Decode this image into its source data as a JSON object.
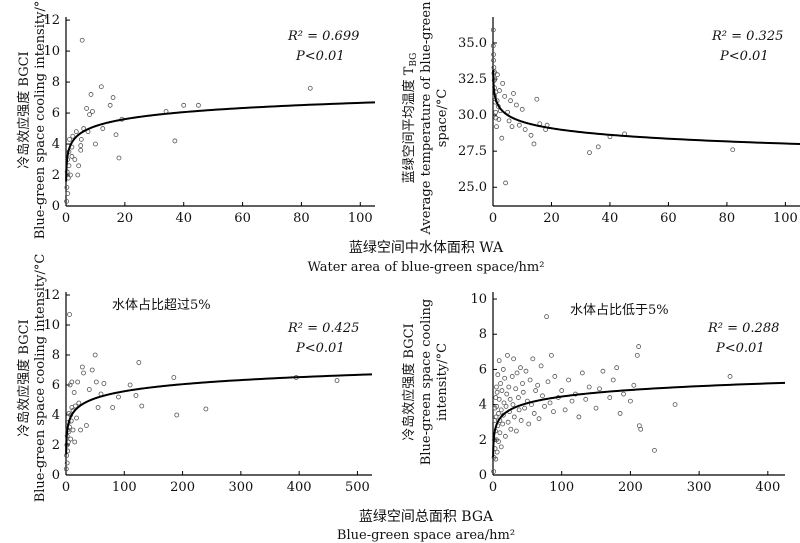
{
  "xlabels": {
    "top": {
      "zh": "蓝绿空间中水体面积 WA",
      "en": "Water area of blue-green space/hm²"
    },
    "bottom": {
      "zh": "蓝绿空间总面积 BGA",
      "en": "Blue-green space area/hm²"
    }
  },
  "chart_data": [
    {
      "type": "scatter",
      "ylabel_zh": "冷岛效应强度 BGCI",
      "ylabel_en": "Blue-green space cooling intensity/°C",
      "annotation": "",
      "r2_label": "R² = 0.699",
      "p_label": "P<0.01",
      "xlim": [
        0,
        105
      ],
      "ylim": [
        0,
        12.2
      ],
      "xticks": [
        0,
        20,
        40,
        60,
        80,
        100
      ],
      "yticks": [
        0,
        2,
        4,
        6,
        8,
        10,
        12
      ],
      "fit": {
        "form": "a + b*ln(x)",
        "a": 3.65,
        "b": 0.653
      },
      "points": [
        [
          0.2,
          0.3
        ],
        [
          0.3,
          1.2
        ],
        [
          0.4,
          2.2
        ],
        [
          0.5,
          3.0
        ],
        [
          0.6,
          0.8
        ],
        [
          0.8,
          1.8
        ],
        [
          1.0,
          2.6
        ],
        [
          1.0,
          3.5
        ],
        [
          1.2,
          4.3
        ],
        [
          1.5,
          2.0
        ],
        [
          2.0,
          3.2
        ],
        [
          2.0,
          3.8
        ],
        [
          2.3,
          4.5
        ],
        [
          3.0,
          3.0
        ],
        [
          3.5,
          4.8
        ],
        [
          4.0,
          2.0
        ],
        [
          4.3,
          2.6
        ],
        [
          5.0,
          3.9
        ],
        [
          5.0,
          3.6
        ],
        [
          5.2,
          4.3
        ],
        [
          5.5,
          10.7
        ],
        [
          6.0,
          5.0
        ],
        [
          7.0,
          6.3
        ],
        [
          7.5,
          4.8
        ],
        [
          8.0,
          5.9
        ],
        [
          8.5,
          7.2
        ],
        [
          9.0,
          6.1
        ],
        [
          10.0,
          4.0
        ],
        [
          12.0,
          7.7
        ],
        [
          12.5,
          5.0
        ],
        [
          15.0,
          6.5
        ],
        [
          16.0,
          7.0
        ],
        [
          17.0,
          4.6
        ],
        [
          18.0,
          3.1
        ],
        [
          19.0,
          5.6
        ],
        [
          34.0,
          6.1
        ],
        [
          37.0,
          4.2
        ],
        [
          40.0,
          6.5
        ],
        [
          45.0,
          6.5
        ],
        [
          83.0,
          7.6
        ]
      ]
    },
    {
      "type": "scatter",
      "ylabel_zh": "蓝绿空间平均温度 T",
      "ylabel_sub": "BG",
      "ylabel_en1": "Average temperature of blue-green",
      "ylabel_en2": "space/°C",
      "annotation": "",
      "r2_label": "R² = 0.325",
      "p_label": "P<0.01",
      "xlim": [
        0,
        105
      ],
      "ylim": [
        23.7,
        36.8
      ],
      "xticks": [
        0,
        20,
        40,
        60,
        80,
        100
      ],
      "yticks": [
        25.0,
        27.5,
        30.0,
        32.5,
        35.0
      ],
      "ytick_labels": [
        "25.0",
        "27.5",
        "30.0",
        "32.5",
        "35.0"
      ],
      "fit": {
        "form": "a + b*ln(x)",
        "a": 31.06,
        "b": -0.658
      },
      "points": [
        [
          0.1,
          35.9
        ],
        [
          0.1,
          34.8
        ],
        [
          0.2,
          34.2
        ],
        [
          0.2,
          33.8
        ],
        [
          0.3,
          33.3
        ],
        [
          0.3,
          32.9
        ],
        [
          0.4,
          32.4
        ],
        [
          0.5,
          33.0
        ],
        [
          0.5,
          31.9
        ],
        [
          0.6,
          31.3
        ],
        [
          0.7,
          32.5
        ],
        [
          0.8,
          30.9
        ],
        [
          0.9,
          30.2
        ],
        [
          1.0,
          29.8
        ],
        [
          1.0,
          31.6
        ],
        [
          1.2,
          29.2
        ],
        [
          1.4,
          31.0
        ],
        [
          1.5,
          32.8
        ],
        [
          1.8,
          30.6
        ],
        [
          2.0,
          29.7
        ],
        [
          2.2,
          31.7
        ],
        [
          2.5,
          30.3
        ],
        [
          3.0,
          28.4
        ],
        [
          3.3,
          32.2
        ],
        [
          4.0,
          31.3
        ],
        [
          4.3,
          25.3
        ],
        [
          5.0,
          30.2
        ],
        [
          5.5,
          29.6
        ],
        [
          6.0,
          31.0
        ],
        [
          6.5,
          29.2
        ],
        [
          7.0,
          31.5
        ],
        [
          8.0,
          30.7
        ],
        [
          9.0,
          29.3
        ],
        [
          10.0,
          30.4
        ],
        [
          11.0,
          29.0
        ],
        [
          13.0,
          28.6
        ],
        [
          14.0,
          28.0
        ],
        [
          15.0,
          31.1
        ],
        [
          16.0,
          29.4
        ],
        [
          18.0,
          29.0
        ],
        [
          18.5,
          29.3
        ],
        [
          33.0,
          27.4
        ],
        [
          36.0,
          27.8
        ],
        [
          40.0,
          28.5
        ],
        [
          45.0,
          28.7
        ],
        [
          82.0,
          27.6
        ]
      ]
    },
    {
      "type": "scatter",
      "ylabel_zh": "冷岛效应强度 BGCI",
      "ylabel_en": "Blue-green space cooling intensity/°C",
      "annotation": "水体占比超过5%",
      "r2_label": "R² = 0.425",
      "p_label": "P<0.01",
      "xlim": [
        0,
        525
      ],
      "ylim": [
        0,
        12.2
      ],
      "xticks": [
        0,
        100,
        200,
        300,
        400,
        500
      ],
      "yticks": [
        0,
        2,
        4,
        6,
        8,
        10,
        12
      ],
      "fit": {
        "form": "a + b*ln(x)",
        "a": 2.45,
        "b": 0.68
      },
      "points": [
        [
          0.5,
          0.4
        ],
        [
          1,
          1.3
        ],
        [
          1.5,
          2.0
        ],
        [
          2,
          0.8
        ],
        [
          2,
          2.6
        ],
        [
          3,
          3.0
        ],
        [
          3,
          1.6
        ],
        [
          4,
          3.5
        ],
        [
          4,
          2.2
        ],
        [
          5,
          4.1
        ],
        [
          5,
          2.9
        ],
        [
          6,
          10.7
        ],
        [
          6,
          3.2
        ],
        [
          7,
          6.0
        ],
        [
          8,
          4.0
        ],
        [
          8,
          2.4
        ],
        [
          9,
          3.6
        ],
        [
          10,
          6.2
        ],
        [
          10,
          4.5
        ],
        [
          12,
          3.0
        ],
        [
          12,
          4.3
        ],
        [
          14,
          5.5
        ],
        [
          15,
          2.2
        ],
        [
          16,
          4.6
        ],
        [
          18,
          3.8
        ],
        [
          20,
          6.2
        ],
        [
          22,
          4.8
        ],
        [
          25,
          3.0
        ],
        [
          28,
          7.2
        ],
        [
          30,
          6.8
        ],
        [
          35,
          3.3
        ],
        [
          40,
          5.7
        ],
        [
          45,
          7.0
        ],
        [
          50,
          8.0
        ],
        [
          52,
          6.2
        ],
        [
          55,
          4.5
        ],
        [
          60,
          5.4
        ],
        [
          65,
          6.1
        ],
        [
          80,
          4.5
        ],
        [
          90,
          5.2
        ],
        [
          110,
          6.0
        ],
        [
          120,
          5.3
        ],
        [
          125,
          7.5
        ],
        [
          130,
          4.6
        ],
        [
          185,
          6.5
        ],
        [
          190,
          4.0
        ],
        [
          240,
          4.4
        ],
        [
          395,
          6.5
        ],
        [
          465,
          6.3
        ]
      ]
    },
    {
      "type": "scatter",
      "ylabel_zh": "冷岛效应强度 BGCI",
      "ylabel_en1": "Blue-green space cooling",
      "ylabel_en2": "intensity/°C",
      "annotation": "水体占比低于5%",
      "r2_label": "R² = 0.288",
      "p_label": "P<0.01",
      "xlim": [
        0,
        425
      ],
      "ylim": [
        0,
        10.4
      ],
      "xticks": [
        0,
        100,
        200,
        300,
        400
      ],
      "yticks": [
        0,
        2,
        4,
        6,
        8,
        10
      ],
      "fit": {
        "form": "a + b*ln(x)",
        "a": 1.97,
        "b": 0.54
      },
      "points": [
        [
          1,
          0.2
        ],
        [
          1.5,
          1.0
        ],
        [
          2,
          2.0
        ],
        [
          2.5,
          3.1
        ],
        [
          3,
          1.5
        ],
        [
          3,
          3.8
        ],
        [
          3.5,
          2.5
        ],
        [
          4,
          4.4
        ],
        [
          4,
          0.9
        ],
        [
          4.5,
          3.3
        ],
        [
          5,
          2.0
        ],
        [
          5,
          5.0
        ],
        [
          5.5,
          3.9
        ],
        [
          6,
          1.3
        ],
        [
          6,
          4.7
        ],
        [
          7,
          2.8
        ],
        [
          7,
          5.7
        ],
        [
          8,
          3.5
        ],
        [
          8,
          1.9
        ],
        [
          9,
          4.3
        ],
        [
          9,
          6.5
        ],
        [
          10,
          2.4
        ],
        [
          10,
          3.1
        ],
        [
          11,
          5.2
        ],
        [
          12,
          3.7
        ],
        [
          12,
          1.6
        ],
        [
          13,
          4.8
        ],
        [
          14,
          2.9
        ],
        [
          15,
          6.0
        ],
        [
          15,
          3.4
        ],
        [
          16,
          4.1
        ],
        [
          17,
          5.5
        ],
        [
          18,
          2.2
        ],
        [
          19,
          3.9
        ],
        [
          20,
          4.6
        ],
        [
          21,
          6.8
        ],
        [
          22,
          3.0
        ],
        [
          23,
          5.0
        ],
        [
          24,
          3.6
        ],
        [
          25,
          4.3
        ],
        [
          26,
          2.6
        ],
        [
          28,
          5.6
        ],
        [
          29,
          4.0
        ],
        [
          30,
          6.6
        ],
        [
          31,
          3.3
        ],
        [
          33,
          4.9
        ],
        [
          34,
          2.5
        ],
        [
          35,
          5.8
        ],
        [
          37,
          4.4
        ],
        [
          38,
          3.7
        ],
        [
          40,
          6.1
        ],
        [
          41,
          3.1
        ],
        [
          43,
          5.2
        ],
        [
          44,
          4.7
        ],
        [
          46,
          3.8
        ],
        [
          48,
          5.9
        ],
        [
          50,
          4.2
        ],
        [
          52,
          2.9
        ],
        [
          54,
          5.4
        ],
        [
          56,
          4.0
        ],
        [
          58,
          6.6
        ],
        [
          60,
          3.5
        ],
        [
          62,
          4.8
        ],
        [
          65,
          5.1
        ],
        [
          67,
          3.2
        ],
        [
          70,
          6.2
        ],
        [
          72,
          4.5
        ],
        [
          75,
          3.9
        ],
        [
          78,
          9.0
        ],
        [
          80,
          5.3
        ],
        [
          83,
          4.1
        ],
        [
          85,
          6.8
        ],
        [
          88,
          3.6
        ],
        [
          90,
          5.6
        ],
        [
          95,
          4.4
        ],
        [
          100,
          4.8
        ],
        [
          105,
          3.7
        ],
        [
          110,
          5.4
        ],
        [
          115,
          4.2
        ],
        [
          120,
          4.6
        ],
        [
          125,
          3.3
        ],
        [
          130,
          5.8
        ],
        [
          135,
          4.3
        ],
        [
          140,
          5.0
        ],
        [
          150,
          3.8
        ],
        [
          155,
          4.9
        ],
        [
          160,
          5.9
        ],
        [
          170,
          4.4
        ],
        [
          175,
          5.4
        ],
        [
          180,
          6.1
        ],
        [
          185,
          3.5
        ],
        [
          190,
          4.6
        ],
        [
          200,
          4.2
        ],
        [
          205,
          5.1
        ],
        [
          210,
          6.8
        ],
        [
          212,
          7.3
        ],
        [
          213,
          2.8
        ],
        [
          215,
          2.6
        ],
        [
          235,
          1.4
        ],
        [
          265,
          4.0
        ],
        [
          345,
          5.6
        ]
      ]
    }
  ]
}
